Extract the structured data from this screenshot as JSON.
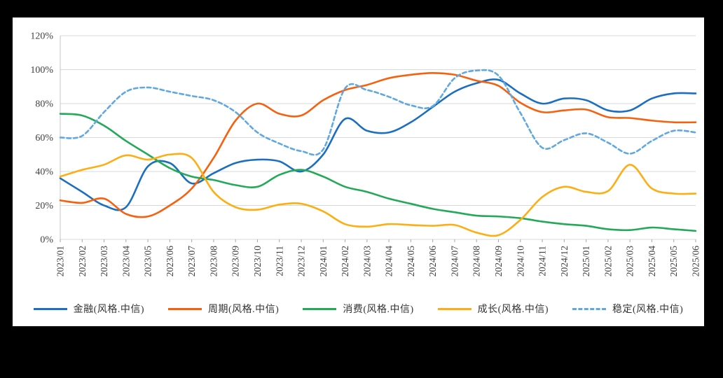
{
  "page": {
    "background_color": "#000000",
    "panel_color": "#ffffff"
  },
  "chart_data": {
    "type": "line",
    "title": "",
    "xlabel": "",
    "ylabel": "",
    "ylim": [
      0,
      120
    ],
    "grid": true,
    "gridline_color": "#d9d9d9",
    "axis_color": "#c6c6c6",
    "tick_color": "#a6a6a6",
    "label_color": "#3f3f3f",
    "legend_position": "bottom",
    "y_tick_values": [
      0,
      20,
      40,
      60,
      80,
      100,
      120
    ],
    "y_tick_labels": [
      "0%",
      "20%",
      "40%",
      "60%",
      "80%",
      "100%",
      "120%"
    ],
    "categories": [
      "2023/01",
      "2023/02",
      "2023/03",
      "2023/04",
      "2023/05",
      "2023/06",
      "2023/07",
      "2023/08",
      "2023/09",
      "2023/10",
      "2023/11",
      "2023/12",
      "2024/01",
      "2024/02",
      "2024/03",
      "2024/04",
      "2024/05",
      "2024/06",
      "2024/07",
      "2024/08",
      "2024/09",
      "2024/10",
      "2024/11",
      "2024/12",
      "2025/01",
      "2025/02",
      "2025/03",
      "2025/04",
      "2025/05",
      "2025/06"
    ],
    "series": [
      {
        "name": "金融(风格.中信)",
        "color": "#1c6fc0",
        "dashed": false,
        "values": [
          36,
          28,
          20,
          19,
          43,
          45,
          33,
          39,
          45,
          47,
          46,
          40,
          50,
          71,
          64,
          63,
          69,
          78,
          87,
          92,
          94,
          86,
          80,
          83,
          82,
          76,
          76,
          83,
          86,
          86
        ]
      },
      {
        "name": "周期(风格.中信)",
        "color": "#f7600f",
        "dashed": false,
        "values": [
          23,
          21.5,
          24,
          15,
          13.5,
          20,
          30,
          48,
          70,
          80,
          74,
          73,
          82,
          88,
          91,
          95,
          97,
          98,
          97,
          93.5,
          90.5,
          80.5,
          75,
          76,
          76.5,
          72,
          71.5,
          70,
          69,
          69
        ]
      },
      {
        "name": "消费(风格.中信)",
        "color": "#23a957",
        "dashed": false,
        "values": [
          74,
          73,
          67,
          58,
          50,
          42,
          37,
          35,
          32,
          31,
          38,
          41,
          37,
          31,
          28,
          24,
          21,
          18,
          16,
          14,
          13.5,
          12.5,
          10.5,
          9,
          8,
          6,
          5.5,
          7,
          6,
          5
        ]
      },
      {
        "name": "成长(风格.中信)",
        "color": "#fcae12",
        "dashed": false,
        "values": [
          37,
          41,
          44,
          49.5,
          47,
          50,
          48,
          28,
          19,
          17.5,
          20.5,
          21,
          16.5,
          9,
          7.5,
          9,
          8.5,
          8,
          8.5,
          4,
          2.5,
          11.5,
          25,
          31,
          28,
          28.5,
          44,
          30,
          27,
          27
        ]
      },
      {
        "name": "稳定(风格.中信)",
        "color": "#60a9e0",
        "dashed": true,
        "values": [
          60,
          61,
          75,
          87,
          89.5,
          87,
          84.5,
          82,
          75,
          63,
          56.5,
          52,
          53,
          89,
          88,
          84,
          79,
          78.5,
          95,
          99.5,
          96.5,
          74.5,
          54,
          58.5,
          62.5,
          57,
          50.5,
          58,
          64,
          63
        ]
      }
    ]
  }
}
